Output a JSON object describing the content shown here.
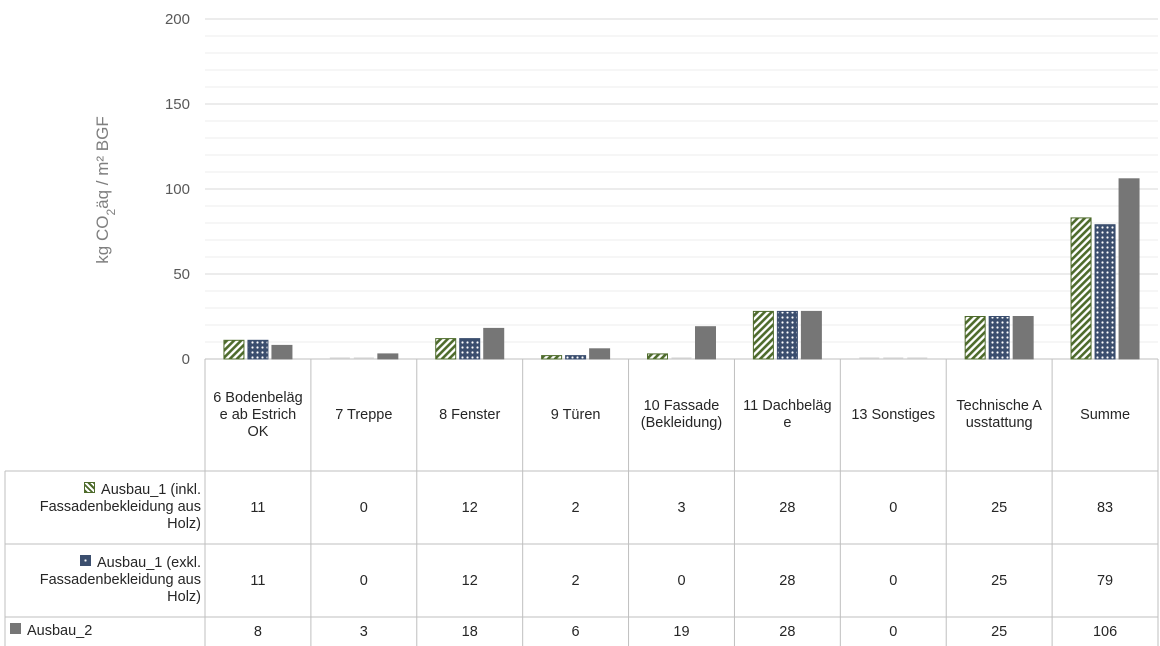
{
  "chart_data": {
    "type": "bar",
    "ylabel": "kg CO₂äq / m² BGF",
    "ylim": [
      0,
      200
    ],
    "yticks": [
      0,
      50,
      100,
      150,
      200
    ],
    "categories": [
      "6 Bodenbeläge ab Estrich OK",
      "7 Treppe",
      "8 Fenster",
      "9 Türen",
      "10 Fassade (Bekleidung)",
      "11 Dachbeläge",
      "13 Sonstiges",
      "Technische Ausstattung",
      "Summe"
    ],
    "series": [
      {
        "name": "Ausbau_1 (inkl. Fassadenbekleidung aus Holz)",
        "values": [
          11,
          0,
          12,
          2,
          3,
          28,
          0,
          25,
          83
        ],
        "color": "#4e6b2c",
        "pattern": "diagonal-stripes"
      },
      {
        "name": "Ausbau_1 (exkl. Fassadenbekleidung aus Holz)",
        "values": [
          11,
          0,
          12,
          2,
          0,
          28,
          0,
          25,
          79
        ],
        "color": "#3b4e6e",
        "pattern": "dots"
      },
      {
        "name": "Ausbau_2",
        "values": [
          8,
          3,
          18,
          6,
          19,
          28,
          0,
          25,
          106
        ],
        "color": "#767676",
        "pattern": "solid"
      }
    ],
    "legend_position": "data-table",
    "grid": true
  }
}
